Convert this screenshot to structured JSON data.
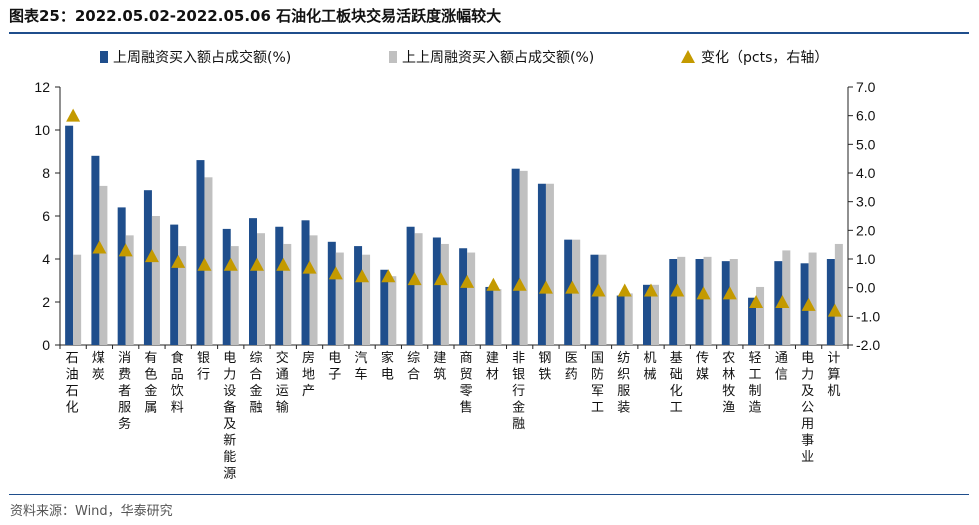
{
  "title": "图表25：2022.05.02-2022.05.06 石油化工板块交易活跃度涨幅较大",
  "source": "资料来源：Wind，华泰研究",
  "colors": {
    "bar1": "#1f4e8c",
    "bar2": "#c0c0c0",
    "marker": "#c49a00",
    "rule": "#1f4e8c"
  },
  "chart_data": {
    "type": "bar",
    "title": "",
    "categories": [
      "石油石化",
      "煤炭",
      "消费者服务",
      "有色金属",
      "食品饮料",
      "银行",
      "电力设备及新能源",
      "综合金融",
      "交通运输",
      "房地产",
      "电子",
      "汽车",
      "家电",
      "综合",
      "建筑",
      "商贸零售",
      "建材",
      "非银行金融",
      "钢铁",
      "医药",
      "国防军工",
      "纺织服装",
      "机械",
      "基础化工",
      "传媒",
      "农林牧渔",
      "轻工制造",
      "通信",
      "电力及公用事业",
      "计算机"
    ],
    "series": [
      {
        "name": "上周融资买入额占成交额(%)",
        "axis": "left",
        "kind": "bar",
        "values": [
          10.2,
          8.8,
          6.4,
          7.2,
          5.6,
          8.6,
          5.4,
          5.9,
          5.5,
          5.8,
          4.8,
          4.6,
          3.5,
          5.5,
          5.0,
          4.5,
          2.7,
          8.2,
          7.5,
          4.9,
          4.2,
          2.3,
          2.8,
          4.0,
          4.0,
          3.9,
          2.2,
          3.9,
          3.8,
          4.0
        ]
      },
      {
        "name": "上上周融资买入额占成交额(%)",
        "axis": "left",
        "kind": "bar",
        "values": [
          4.2,
          7.4,
          5.1,
          6.0,
          4.6,
          7.8,
          4.6,
          5.2,
          4.7,
          5.1,
          4.3,
          4.2,
          3.2,
          5.2,
          4.7,
          4.3,
          2.6,
          8.1,
          7.5,
          4.9,
          4.2,
          2.4,
          2.8,
          4.1,
          4.1,
          4.0,
          2.7,
          4.4,
          4.3,
          4.7
        ]
      },
      {
        "name": "变化（pcts，右轴）",
        "axis": "right",
        "kind": "marker",
        "values": [
          6.0,
          1.4,
          1.3,
          1.1,
          0.9,
          0.8,
          0.8,
          0.8,
          0.8,
          0.7,
          0.5,
          0.4,
          0.4,
          0.3,
          0.3,
          0.2,
          0.1,
          0.1,
          0.0,
          0.0,
          -0.1,
          -0.1,
          -0.1,
          -0.1,
          -0.2,
          -0.2,
          -0.5,
          -0.5,
          -0.6,
          -0.8
        ]
      }
    ],
    "y_left": {
      "ylim": [
        0,
        12
      ],
      "ticks": [
        "0",
        "2",
        "4",
        "6",
        "8",
        "10",
        "12"
      ]
    },
    "y_right": {
      "ylim": [
        -2.0,
        7.0
      ],
      "ticks": [
        "-2.0",
        "-1.0",
        "0.0",
        "1.0",
        "2.0",
        "3.0",
        "4.0",
        "5.0",
        "6.0",
        "7.0"
      ]
    },
    "grid": false,
    "legend_position": "top"
  }
}
